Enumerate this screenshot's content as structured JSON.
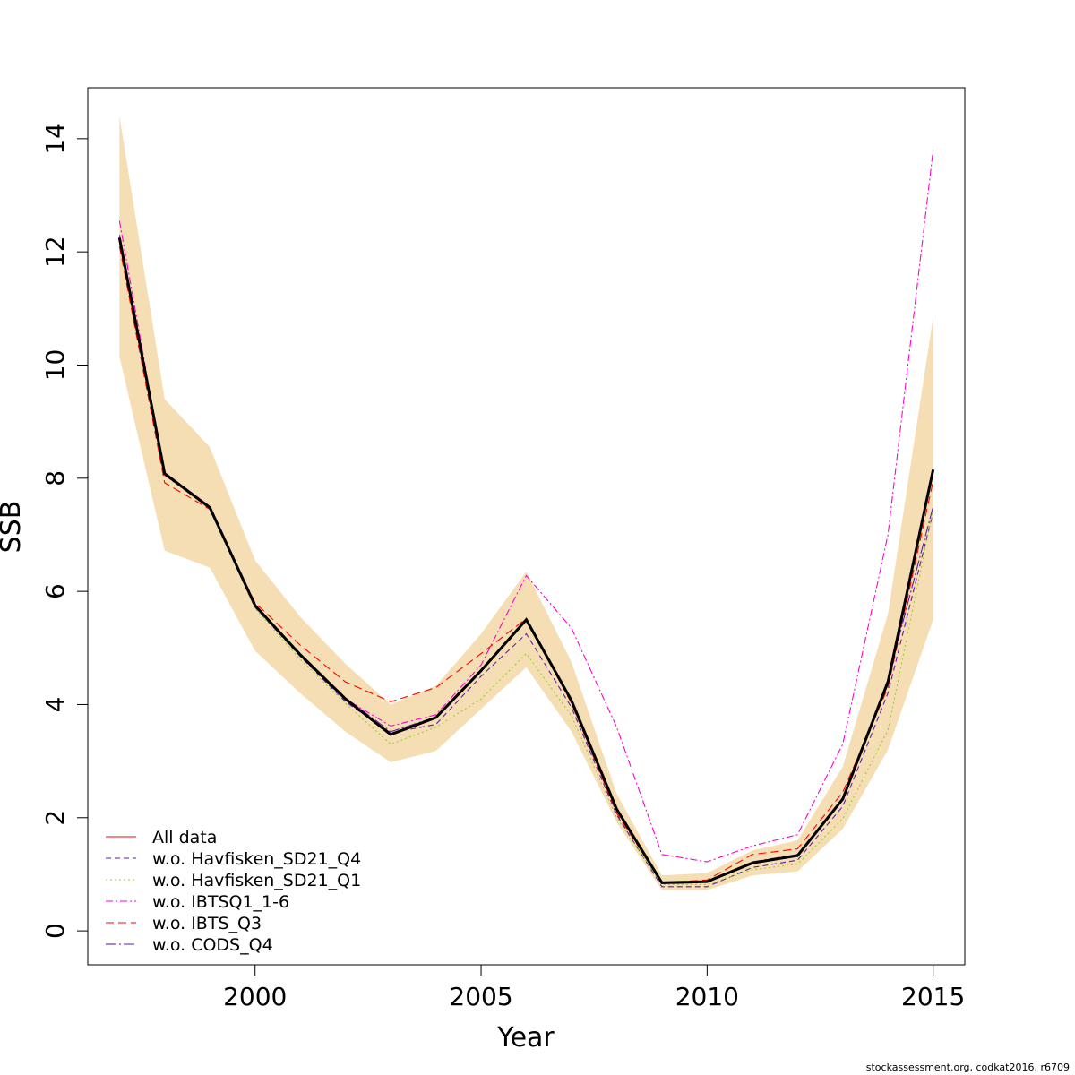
{
  "footer_text": "stockassessment.org, codkat2016, r6709",
  "chart_data": {
    "type": "line",
    "xlabel": "Year",
    "ylabel": "SSB",
    "xlim": [
      1996.3,
      2015.7
    ],
    "ylim": [
      -0.6,
      14.9
    ],
    "x_ticks": [
      2000,
      2005,
      2010,
      2015
    ],
    "y_ticks": [
      0,
      2,
      4,
      6,
      8,
      10,
      12,
      14
    ],
    "grid": false,
    "legend_position": "bottom-left",
    "x": [
      1997,
      1998,
      1999,
      2000,
      2001,
      2002,
      2003,
      2004,
      2005,
      2006,
      2007,
      2008,
      2009,
      2010,
      2011,
      2012,
      2013,
      2014,
      2015
    ],
    "confidence_band": {
      "color": "#F5DEB3",
      "lower": [
        10.15,
        6.72,
        6.42,
        4.95,
        4.2,
        3.52,
        2.98,
        3.18,
        3.92,
        4.66,
        3.52,
        1.92,
        0.72,
        0.72,
        0.98,
        1.05,
        1.8,
        3.2,
        5.5
      ],
      "upper": [
        14.4,
        9.4,
        8.55,
        6.55,
        5.55,
        4.72,
        4.0,
        4.33,
        5.25,
        6.35,
        4.75,
        2.42,
        0.98,
        1.02,
        1.42,
        1.6,
        2.9,
        5.6,
        10.85
      ]
    },
    "main_series": {
      "color": "#000000",
      "values": [
        12.25,
        8.08,
        7.48,
        5.75,
        4.88,
        4.1,
        3.47,
        3.77,
        4.6,
        5.5,
        4.07,
        2.15,
        0.85,
        0.87,
        1.2,
        1.33,
        2.33,
        4.4,
        8.15
      ]
    },
    "series": [
      {
        "name": "All data",
        "color": "#FF0000",
        "dash": "",
        "values": [
          12.25,
          8.08,
          7.48,
          5.75,
          4.88,
          4.1,
          3.47,
          3.77,
          4.6,
          5.5,
          4.07,
          2.15,
          0.85,
          0.87,
          1.2,
          1.33,
          2.33,
          4.4,
          8.15
        ]
      },
      {
        "name": "w.o. Havfisken_SD21_Q4",
        "color": "#5B1FA8",
        "dash": "6,4",
        "values": [
          12.2,
          8.1,
          7.5,
          5.72,
          4.85,
          4.05,
          3.5,
          3.65,
          4.5,
          5.25,
          3.95,
          2.05,
          0.78,
          0.78,
          1.12,
          1.25,
          2.2,
          4.2,
          7.4
        ]
      },
      {
        "name": "w.o. Havfisken_SD21_Q1",
        "color": "#9ACD32",
        "dash": "2,3",
        "values": [
          12.15,
          8.05,
          7.45,
          5.7,
          4.8,
          4.02,
          3.3,
          3.6,
          4.1,
          4.9,
          3.8,
          2.0,
          0.82,
          0.82,
          1.08,
          1.18,
          1.98,
          3.55,
          7.45
        ]
      },
      {
        "name": "w.o. IBTSQ1_1-6",
        "color": "#FF00CC",
        "dash": "8,3,2,3",
        "values": [
          12.55,
          8.05,
          7.5,
          5.75,
          4.88,
          4.1,
          3.62,
          3.82,
          4.7,
          6.28,
          5.35,
          3.6,
          1.35,
          1.22,
          1.5,
          1.7,
          3.3,
          7.0,
          13.8
        ]
      },
      {
        "name": "w.o. IBTS_Q3",
        "color": "#FF0000",
        "dash": "9,5",
        "values": [
          12.1,
          7.92,
          7.45,
          5.8,
          5.05,
          4.4,
          4.05,
          4.3,
          4.9,
          5.52,
          4.02,
          2.08,
          0.85,
          0.9,
          1.35,
          1.45,
          2.45,
          4.3,
          7.95
        ]
      },
      {
        "name": "w.o. CODS_Q4",
        "color": "#5B1FA8",
        "dash": "12,3,2,3",
        "values": [
          12.3,
          8.1,
          7.5,
          5.77,
          4.9,
          4.12,
          3.52,
          3.78,
          4.62,
          5.52,
          4.08,
          2.15,
          0.86,
          0.88,
          1.22,
          1.35,
          2.35,
          4.45,
          7.5
        ]
      }
    ]
  }
}
